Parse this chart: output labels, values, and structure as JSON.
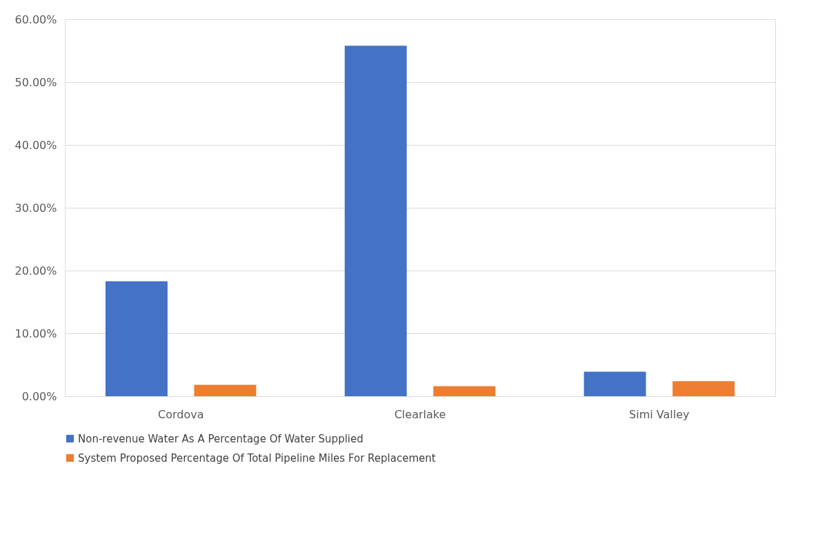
{
  "chart_data": {
    "type": "bar",
    "categories": [
      "Cordova",
      "Clearlake",
      "Simi Valley"
    ],
    "series": [
      {
        "name": "Non-revenue Water As A Percentage Of Water Supplied",
        "color": "#4472c4",
        "values": [
          18.3,
          55.8,
          3.9
        ]
      },
      {
        "name": "System Proposed Percentage Of Total Pipeline Miles For Replacement",
        "color": "#ed7d31",
        "values": [
          1.8,
          1.6,
          2.4
        ]
      }
    ],
    "ylim": [
      0,
      60
    ],
    "yticks": [
      {
        "value": 0,
        "label": "0.00%"
      },
      {
        "value": 10,
        "label": "10.00%"
      },
      {
        "value": 20,
        "label": "20.00%"
      },
      {
        "value": 30,
        "label": "30.00%"
      },
      {
        "value": 40,
        "label": "40.00%"
      },
      {
        "value": 50,
        "label": "50.00%"
      },
      {
        "value": 60,
        "label": "60.00%"
      }
    ],
    "grid": "y",
    "legend": "bottom"
  }
}
